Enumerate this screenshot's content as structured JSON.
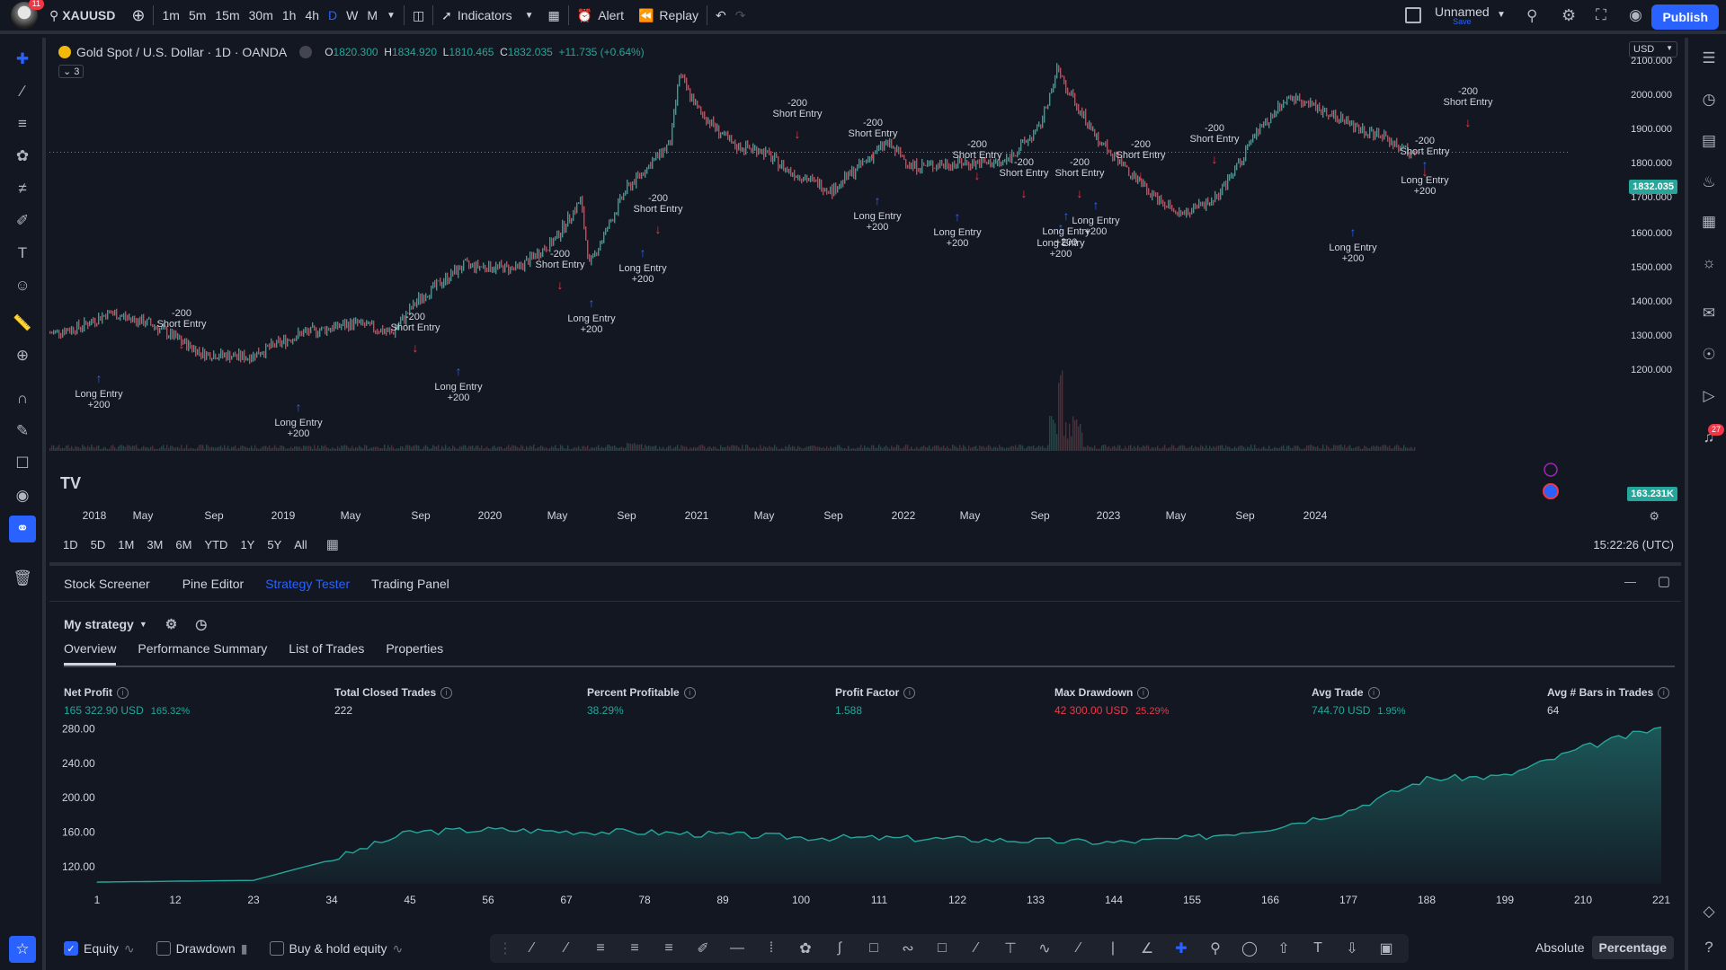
{
  "topbar": {
    "notifications": "11",
    "symbol": "XAUUSD",
    "intervals": [
      "1m",
      "5m",
      "15m",
      "30m",
      "1h",
      "4h",
      "D",
      "W",
      "M"
    ],
    "active_interval": "D",
    "indicators": "Indicators",
    "alert": "Alert",
    "replay": "Replay",
    "layout_name": "Unnamed",
    "layout_sub": "Save",
    "publish": "Publish"
  },
  "legend": {
    "title": "Gold Spot / U.S. Dollar · 1D · OANDA",
    "o_label": "O",
    "o": "1820.300",
    "h_label": "H",
    "h": "1834.920",
    "l_label": "L",
    "l": "1810.465",
    "c_label": "C",
    "c": "1832.035",
    "chg": "+11.735 (+0.64%)",
    "collapse": "3"
  },
  "price_scale": {
    "currency": "USD",
    "labels": [
      "2100.000",
      "2000.000",
      "1900.000",
      "1800.000",
      "1700.000",
      "1600.000",
      "1500.000",
      "1400.000",
      "1300.000",
      "1200.000"
    ],
    "last_price": "1832.035",
    "volume": "163.231K"
  },
  "time_scale": [
    "2018",
    "May",
    "Sep",
    "2019",
    "May",
    "Sep",
    "2020",
    "May",
    "Sep",
    "2021",
    "May",
    "Sep",
    "2022",
    "May",
    "Sep",
    "2023",
    "May",
    "Sep",
    "2024"
  ],
  "annotations": {
    "long": "Long Entry",
    "long_qty": "+200",
    "short": "Short Entry",
    "short_qty": "-200"
  },
  "range_bar": {
    "ranges": [
      "1D",
      "5D",
      "1M",
      "3M",
      "6M",
      "YTD",
      "1Y",
      "5Y",
      "All"
    ],
    "clock": "15:22:26 (UTC)"
  },
  "bottom_tabs": [
    "Stock Screener",
    "Pine Editor",
    "Strategy Tester",
    "Trading Panel"
  ],
  "active_bottom_tab": "Strategy Tester",
  "strategy": {
    "name": "My strategy",
    "subtabs": [
      "Overview",
      "Performance Summary",
      "List of Trades",
      "Properties"
    ]
  },
  "metrics": [
    {
      "title": "Net Profit",
      "value": "165 322.90 USD",
      "pct": "165.32%",
      "color": "green"
    },
    {
      "title": "Total Closed Trades",
      "value": "222",
      "pct": "",
      "color": "white"
    },
    {
      "title": "Percent Profitable",
      "value": "38.29%",
      "pct": "",
      "color": "green"
    },
    {
      "title": "Profit Factor",
      "value": "1.588",
      "pct": "",
      "color": "green"
    },
    {
      "title": "Max Drawdown",
      "value": "42 300.00 USD",
      "pct": "25.29%",
      "color": "red"
    },
    {
      "title": "Avg Trade",
      "value": "744.70 USD",
      "pct": "1.95%",
      "color": "green"
    },
    {
      "title": "Avg # Bars in Trades",
      "value": "64",
      "pct": "",
      "color": "white"
    }
  ],
  "chart_data": {
    "type": "area",
    "title": "",
    "x": [
      1,
      12,
      23,
      34,
      45,
      56,
      67,
      78,
      89,
      100,
      111,
      122,
      133,
      144,
      155,
      166,
      177,
      188,
      199,
      210,
      221
    ],
    "y_ticks": [
      "280.00",
      "240.00",
      "200.00",
      "160.00",
      "120.00"
    ],
    "ylim": [
      100,
      290
    ],
    "series": [
      {
        "name": "Equity",
        "values": [
          102,
          103,
          104,
          128,
          160,
          163,
          161,
          160,
          157,
          154,
          153,
          152,
          150,
          148,
          153,
          165,
          185,
          222,
          225,
          258,
          282
        ]
      }
    ]
  },
  "equity_bar": {
    "equity": "Equity",
    "drawdown": "Drawdown",
    "buyhold": "Buy & hold equity",
    "absolute": "Absolute",
    "percentage": "Percentage"
  },
  "colors": {
    "bg": "#131722",
    "accent": "#2962ff",
    "up": "#26a69a",
    "down": "#f23645"
  }
}
